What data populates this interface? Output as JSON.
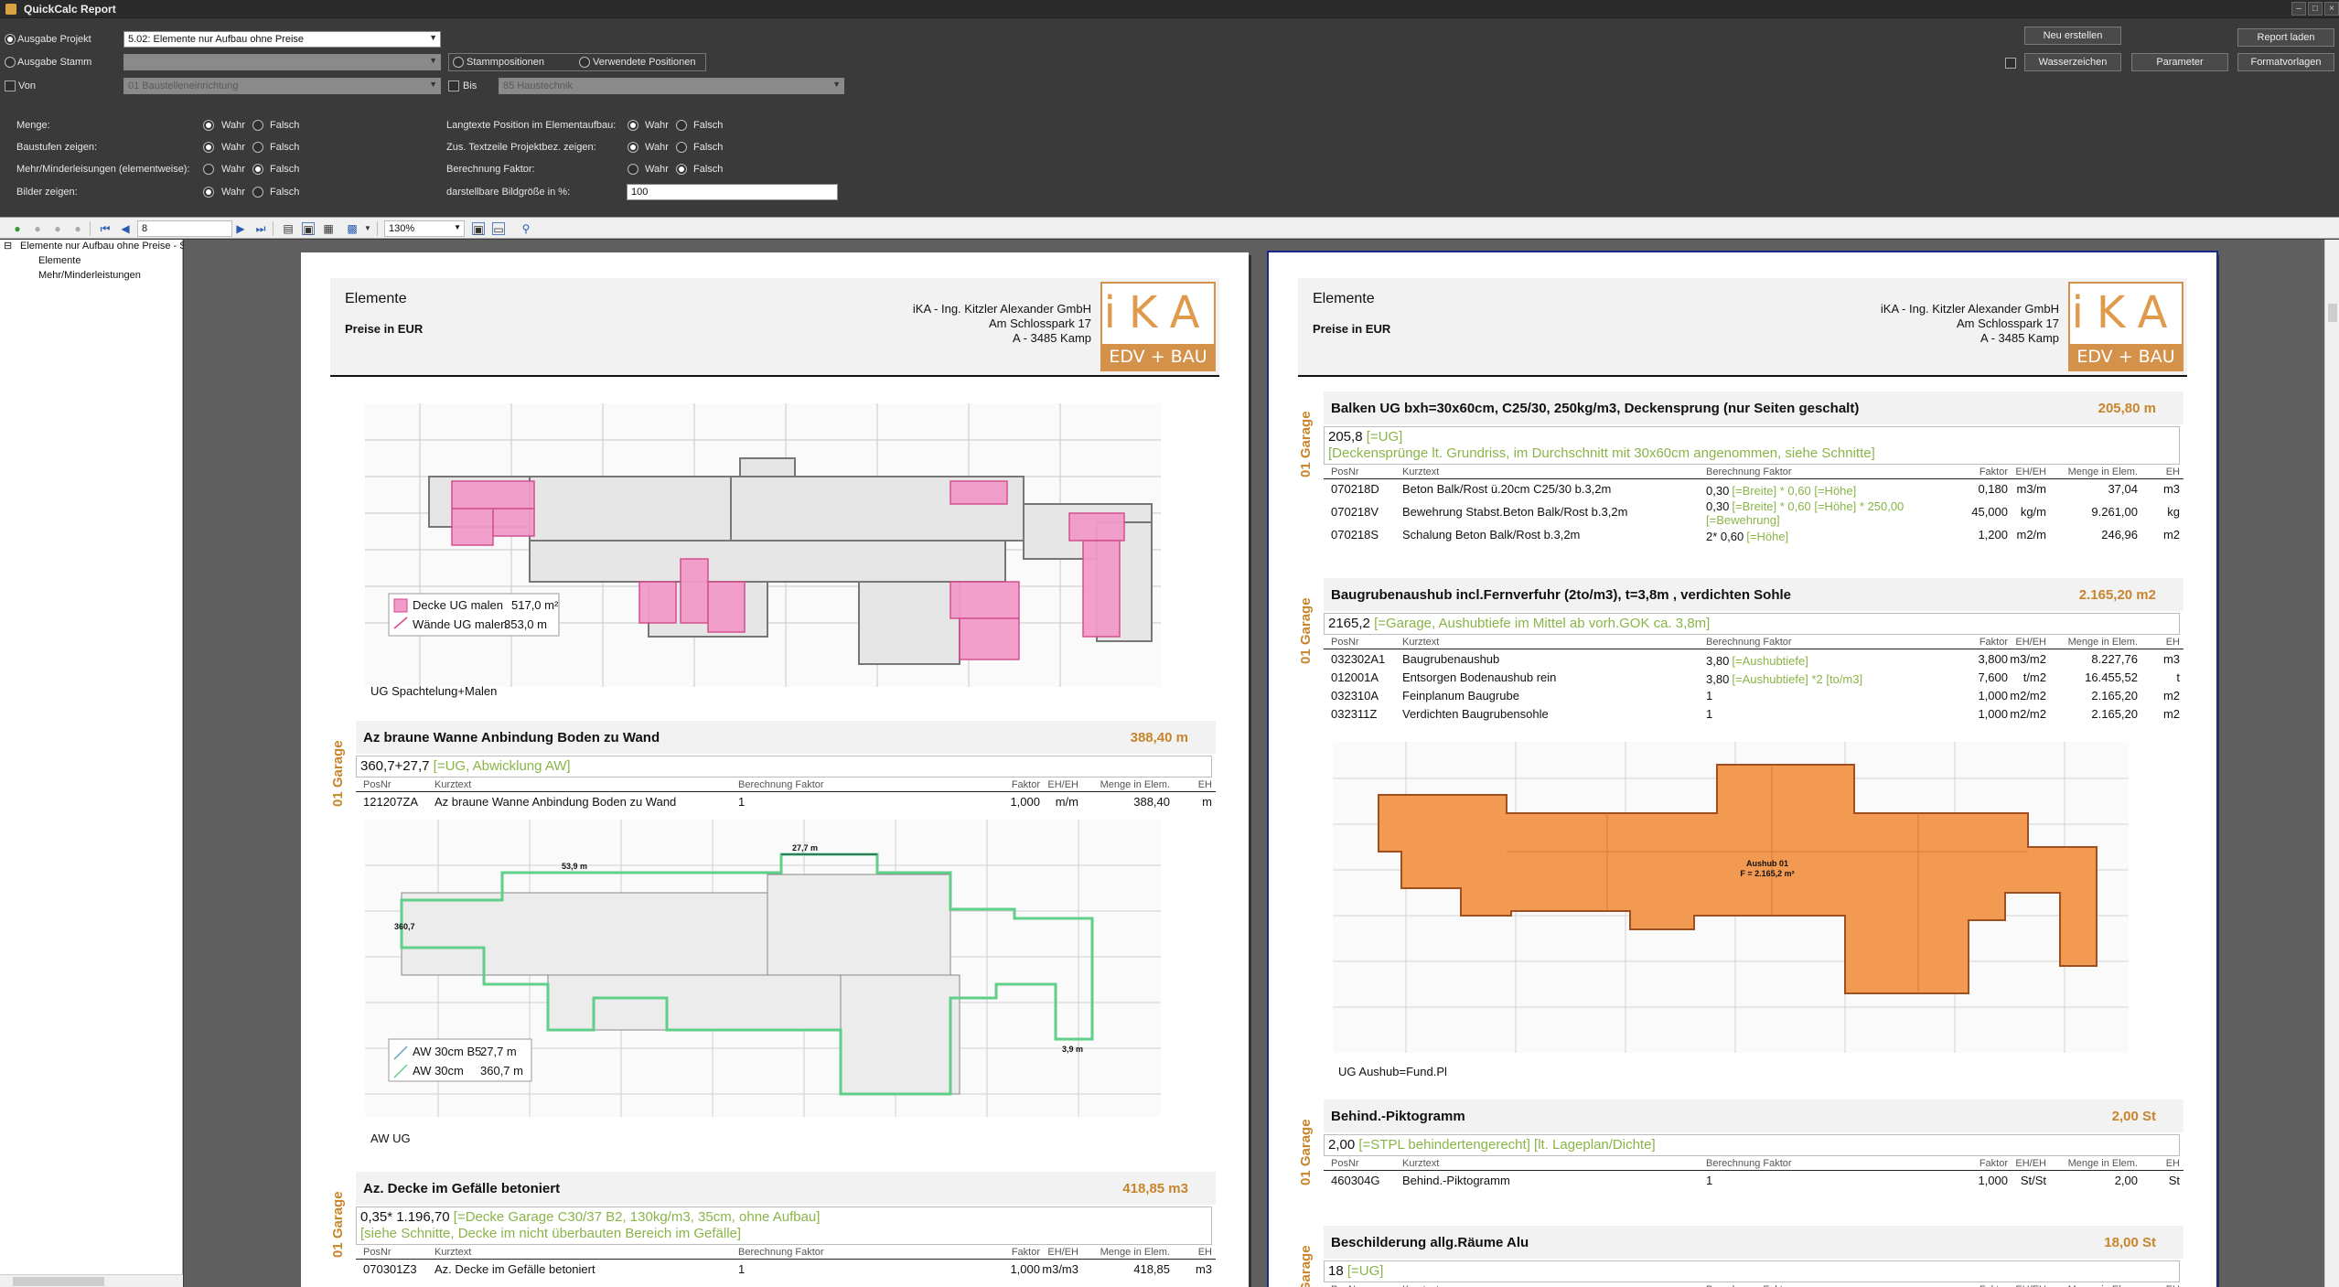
{
  "window": {
    "title": "QuickCalc Report",
    "min": "–",
    "max": "□",
    "close": "×"
  },
  "options": {
    "ausgabe_projekt_label": "Ausgabe Projekt",
    "ausgabe_projekt_value": "5.02: Elemente nur Aufbau ohne Preise",
    "ausgabe_stamm_label": "Ausgabe Stamm",
    "stammpositionen_label": "Stammpositionen",
    "verwendete_positionen_label": "Verwendete Positionen",
    "von_label": "Von",
    "von_value": "01 Baustelleneinrichtung",
    "bis_label": "Bis",
    "bis_value": "85 Haustechnik",
    "neu_erstellen": "Neu erstellen",
    "report_laden": "Report laden",
    "wasserzeichen": "Wasserzeichen",
    "parameter": "Parameter",
    "formatvorlagen": "Formatvorlagen",
    "wahr": "Wahr",
    "falsch": "Falsch",
    "menge_label": "Menge:",
    "baustufen_label": "Baustufen zeigen:",
    "mehrminder_label": "Mehr/Minderleisungen (elementweise):",
    "bilder_label": "Bilder zeigen:",
    "langtexte_label": "Langtexte Position im Elementaufbau:",
    "textzeile_label": "Zus. Textzeile Projektbez. zeigen:",
    "berechnung_label": "Berechnung Faktor:",
    "bildgroesse_label": "darstellbare Bildgröße in %:",
    "bildgroesse_value": "100"
  },
  "toolbar": {
    "page": "8",
    "zoom": "130%"
  },
  "tree": {
    "root": "Elemente nur Aufbau ohne Preise - SA",
    "children": [
      "Elemente",
      "Mehr/Minderleistungen"
    ]
  },
  "report_header": {
    "title": "Elemente",
    "subtitle": "Preise in EUR",
    "company": "iKA - Ing. Kitzler Alexander GmbH",
    "street": "Am Schlosspark 17",
    "city": "A - 3485 Kamp",
    "logo_top": "iKA",
    "logo_bottom": "EDV + BAU"
  },
  "table_headers": {
    "posnr": "PosNr",
    "kurztext": "Kurztext",
    "berechnung": "Berechnung Faktor",
    "faktor": "Faktor",
    "eheh": "EH/EH",
    "menge": "Menge in Elem.",
    "eh": "EH"
  },
  "group_label": "01 Garage",
  "page1": {
    "drawing1": {
      "legend1": "Decke UG malen",
      "legend1_val": "517,0 m²",
      "legend2": "Wände UG malen",
      "legend2_val": "353,0 m",
      "caption": "UG Spachtelung+Malen"
    },
    "sections": [
      {
        "name": "Az braune Wanne Anbindung Boden zu Wand",
        "qty": "388,40  m",
        "formula_main": "360,7+27,7",
        "formula_note": "[=UG, Abwicklung AW]",
        "formula_line2": "",
        "rows": [
          {
            "pos": "121207ZA",
            "kurz": "Az braune Wanne Anbindung Boden zu Wand",
            "ber": "1",
            "ber_note": "",
            "fak": "1,000",
            "eheh": "m/m",
            "menge": "388,40",
            "eh": "m"
          }
        ]
      },
      {
        "name": "Az. Decke im Gefälle betoniert",
        "qty": "418,85  m3",
        "formula_main": "0,35* 1.196,70",
        "formula_note": "[=Decke Garage C30/37 B2, 130kg/m3, 35cm, ohne Aufbau]",
        "formula_line2": "[siehe Schnitte, Decke im nicht überbauten Bereich im Gefälle]",
        "rows": [
          {
            "pos": "070301Z3",
            "kurz": "Az. Decke im Gefälle betoniert",
            "ber": "1",
            "ber_note": "",
            "fak": "1,000",
            "eheh": "m3/m3",
            "menge": "418,85",
            "eh": "m3"
          }
        ]
      }
    ],
    "drawing2": {
      "legend1": "AW 30cm B5",
      "legend1_val": "27,7   m",
      "legend2": "AW 30cm",
      "legend2_val": "360,7  m",
      "dim1": "27,7 m",
      "dim2": "53,9 m",
      "dim3": "360,7",
      "dim4": "3,9 m",
      "caption": "AW UG"
    }
  },
  "page2": {
    "sections": [
      {
        "name": "Balken UG bxh=30x60cm, C25/30, 250kg/m3,  Deckensprung (nur Seiten geschalt)",
        "qty": "205,80  m",
        "formula_main": "205,8",
        "formula_note": "[=UG]",
        "formula_line2": "[Deckensprünge lt. Grundriss, im Durchschnitt mit 30x60cm angenommen, siehe Schnitte]",
        "rows": [
          {
            "pos": "070218D",
            "kurz": "Beton Balk/Rost ü.20cm C25/30 b.3,2m",
            "ber": "0,30",
            "ber_note": "[=Breite] * 0,60 [=Höhe]",
            "fak": "0,180",
            "eheh": "m3/m",
            "menge": "37,04",
            "eh": "m3"
          },
          {
            "pos": "070218V",
            "kurz": "Bewehrung Stabst.Beton Balk/Rost b.3,2m",
            "ber": "0,30",
            "ber_note": "[=Breite] * 0,60 [=Höhe] * 250,00",
            "ber_note2": "[=Bewehrung]",
            "fak": "45,000",
            "eheh": "kg/m",
            "menge": "9.261,00",
            "eh": "kg"
          },
          {
            "pos": "070218S",
            "kurz": "Schalung Beton Balk/Rost b.3,2m",
            "ber": "2* 0,60",
            "ber_note": "[=Höhe]",
            "fak": "1,200",
            "eheh": "m2/m",
            "menge": "246,96",
            "eh": "m2"
          }
        ]
      },
      {
        "name": "Baugrubenaushub incl.Fernverfuhr (2to/m3), t=3,8m , verdichten Sohle",
        "qty": "2.165,20  m2",
        "formula_main": "2165,2",
        "formula_note": "[=Garage, Aushubtiefe im Mittel ab vorh.GOK ca. 3,8m]",
        "formula_line2": "",
        "rows": [
          {
            "pos": "032302A1",
            "kurz": "Baugrubenaushub",
            "ber": "3,80",
            "ber_note": "[=Aushubtiefe]",
            "fak": "3,800",
            "eheh": "m3/m2",
            "menge": "8.227,76",
            "eh": "m3"
          },
          {
            "pos": "012001A",
            "kurz": "Entsorgen Bodenaushub rein",
            "ber": "3,80",
            "ber_note": "[=Aushubtiefe] *2 [to/m3]",
            "fak": "7,600",
            "eheh": "t/m2",
            "menge": "16.455,52",
            "eh": "t"
          },
          {
            "pos": "032310A",
            "kurz": "Feinplanum Baugrube",
            "ber": "1",
            "ber_note": "",
            "fak": "1,000",
            "eheh": "m2/m2",
            "menge": "2.165,20",
            "eh": "m2"
          },
          {
            "pos": "032311Z",
            "kurz": "Verdichten Baugrubensohle",
            "ber": "1",
            "ber_note": "",
            "fak": "1,000",
            "eheh": "m2/m2",
            "menge": "2.165,20",
            "eh": "m2"
          }
        ]
      },
      {
        "name": "Behind.-Piktogramm",
        "qty": "2,00  St",
        "formula_main": "2,00",
        "formula_note": "[=STPL behindertengerecht]  [lt. Lageplan/Dichte]",
        "formula_line2": "",
        "rows": [
          {
            "pos": "460304G",
            "kurz": "Behind.-Piktogramm",
            "ber": "1",
            "ber_note": "",
            "fak": "1,000",
            "eheh": "St/St",
            "menge": "2,00",
            "eh": "St"
          }
        ]
      },
      {
        "name": "Beschilderung allg.Räume Alu",
        "qty": "18,00  St",
        "formula_main": "18",
        "formula_note": "[=UG]",
        "formula_line2": "",
        "rows": []
      }
    ],
    "drawing": {
      "label1": "Aushub 01",
      "label2": "F = 2.165,2 m²",
      "caption": "UG Aushub=Fund.Pl"
    }
  },
  "colors": {
    "accent": "#c8852b",
    "note_green": "#8ab448",
    "pink": "#f29bc9",
    "orange": "#f39a52",
    "green_outline": "#5fcf8a"
  }
}
